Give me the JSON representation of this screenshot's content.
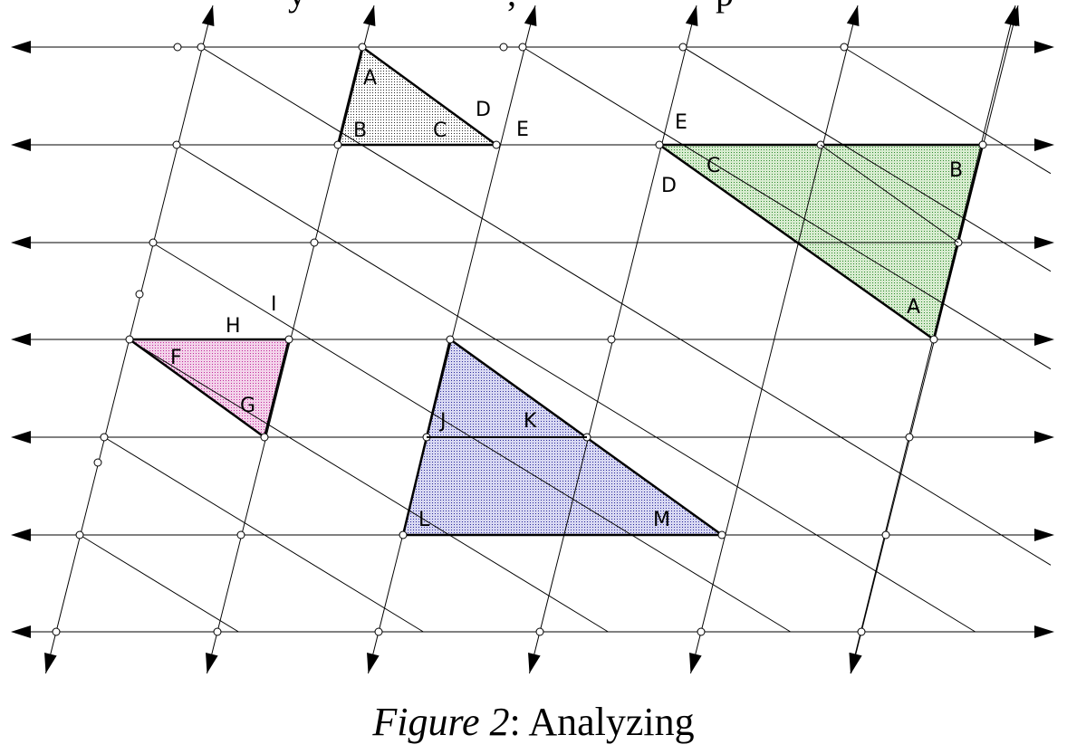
{
  "header": {
    "partial_text": "y",
    "partial_text_2": ", ",
    "partial_text_3": "p"
  },
  "caption": {
    "figure": "Figure 2",
    "sep": ":",
    "text": "Analyzing"
  },
  "colors": {
    "line": "#000000",
    "gray_fill": "#2b2b2b",
    "green_fill": "#2e8b2e",
    "green_bg": "#d8ecd0",
    "pink_fill": "#c0289a",
    "pink_bg": "#f3d3ea",
    "blue_fill": "#2a2a9a",
    "blue_bg": "#d8d8f2"
  },
  "triangles": {
    "gray": {
      "labels": [
        "A",
        "B",
        "C",
        "D",
        "E"
      ]
    },
    "green": {
      "labels": [
        "E",
        "C",
        "D",
        "B",
        "A"
      ]
    },
    "pink": {
      "labels": [
        "I",
        "H",
        "F",
        "G"
      ]
    },
    "blue": {
      "labels": [
        "J",
        "K",
        "L",
        "M"
      ]
    }
  }
}
